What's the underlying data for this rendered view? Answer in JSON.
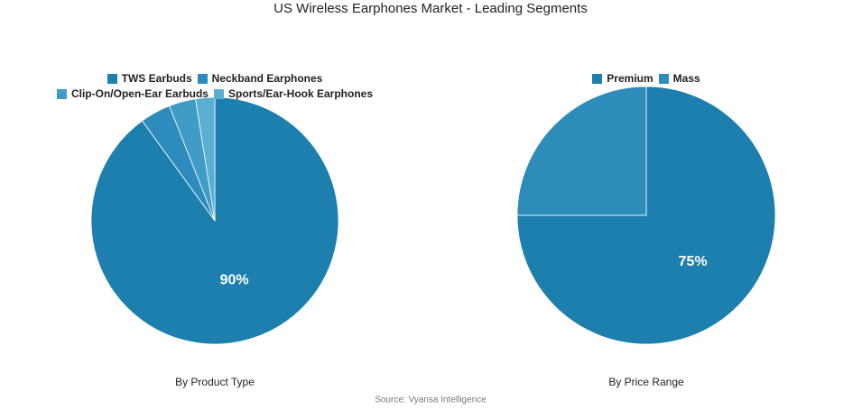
{
  "title": "US Wireless Earphones Market - Leading Segments",
  "source": "Source: Vyansa Intelligence",
  "chart_data": [
    {
      "type": "pie",
      "subtitle": "By Product Type",
      "categories": [
        "TWS Earbuds",
        "Neckband Earphones",
        "Clip-On/Open-Ear Earbuds",
        "Sports/Ear-Hook Earphones"
      ],
      "values": [
        90,
        4,
        3.5,
        2.5
      ],
      "value_labels": [
        "90%",
        null,
        null,
        null
      ],
      "colors": [
        "#1d7fae",
        "#2e8bbd",
        "#3e9cc6",
        "#5aafd1"
      ]
    },
    {
      "type": "pie",
      "subtitle": "By Price Range",
      "categories": [
        "Premium",
        "Mass"
      ],
      "values": [
        75,
        25
      ],
      "value_labels": [
        "75%",
        null
      ],
      "colors": [
        "#1d7fae",
        "#2e8cba"
      ]
    }
  ]
}
